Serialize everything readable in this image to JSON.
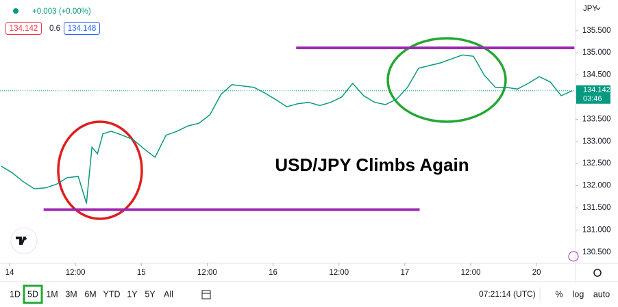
{
  "header": {
    "change": "+0.003 (+0.00%)",
    "bid": "134.142",
    "spread": "0.6",
    "ask": "134.148",
    "currency": "JPY"
  },
  "price_label": {
    "price": "134.142",
    "countdown": "03:46"
  },
  "toolbar": {
    "ranges": [
      "1D",
      "5D",
      "1M",
      "3M",
      "6M",
      "YTD",
      "1Y",
      "5Y",
      "All"
    ],
    "active": "5D",
    "time": "07:21:14 (UTC)",
    "options": [
      "%",
      "log",
      "auto"
    ]
  },
  "chart_data": {
    "type": "line",
    "annotation": "USD/JPY Climbs Again",
    "color": "#089981",
    "x": [
      -1.5,
      0.5,
      2.5,
      4.5,
      6.5,
      8.5,
      10.5,
      12.5,
      14,
      15,
      16,
      17,
      18.5,
      20.5,
      22.5,
      24.5,
      26.5,
      28.5,
      30.5,
      32.5,
      34.5,
      36.5,
      38.5,
      40.5,
      42.5,
      44.5,
      46.5,
      48.5,
      50.5,
      52.5,
      54.5,
      56.5,
      58.5,
      60.5,
      62.5,
      64.5,
      66.5,
      68.5,
      70.5,
      72.5,
      74.5,
      76.5,
      78.5,
      80.5,
      82.5,
      84.5,
      86.5,
      88.5,
      90.5,
      92.5,
      94.5,
      96.5,
      98.5,
      100.5,
      102.5
    ],
    "values": [
      132.44,
      132.29,
      132.09,
      131.93,
      131.95,
      132.03,
      132.18,
      132.21,
      131.6,
      132.87,
      132.72,
      133.17,
      133.23,
      133.14,
      133.04,
      132.83,
      132.64,
      133.14,
      133.23,
      133.35,
      133.41,
      133.6,
      134.06,
      134.28,
      134.25,
      134.22,
      134.09,
      133.94,
      133.78,
      133.85,
      133.88,
      133.81,
      133.88,
      134.0,
      134.31,
      134.03,
      133.88,
      133.83,
      133.95,
      134.22,
      134.65,
      134.71,
      134.77,
      134.86,
      134.95,
      134.92,
      134.49,
      134.22,
      134.22,
      134.18,
      134.31,
      134.46,
      134.34,
      134.03,
      134.142
    ],
    "hlines": [
      {
        "y": 135.11,
        "x": [
          52.2,
          102.9
        ],
        "color": "#9c27b0"
      },
      {
        "y": 131.46,
        "x": [
          6.2,
          74.7
        ],
        "color": "#9c27b0"
      }
    ],
    "xlim": [
      -1.75,
      103.1
    ],
    "ylim": [
      130.25,
      136.19
    ],
    "xticks": [
      {
        "value": 0,
        "label": "14"
      },
      {
        "value": 12,
        "label": "12:00"
      },
      {
        "value": 24,
        "label": "15"
      },
      {
        "value": 36,
        "label": "12:00"
      },
      {
        "value": 48,
        "label": "16"
      },
      {
        "value": 60,
        "label": "12:00"
      },
      {
        "value": 72,
        "label": "17"
      },
      {
        "value": 84,
        "label": "12:00"
      },
      {
        "value": 96,
        "label": "20"
      }
    ],
    "yticks": [
      {
        "value": 130.5,
        "label": "130.500"
      },
      {
        "value": 131,
        "label": "131.000"
      },
      {
        "value": 131.5,
        "label": "131.500"
      },
      {
        "value": 132,
        "label": "132.000"
      },
      {
        "value": 132.5,
        "label": "132.500"
      },
      {
        "value": 133,
        "label": "133.000"
      },
      {
        "value": 133.5,
        "label": "133.500"
      },
      {
        "value": 134,
        "label": "134.000"
      },
      {
        "value": 134.5,
        "label": "134.500"
      },
      {
        "value": 135,
        "label": "135.000"
      },
      {
        "value": 135.5,
        "label": "135.500"
      }
    ],
    "grid": false
  }
}
